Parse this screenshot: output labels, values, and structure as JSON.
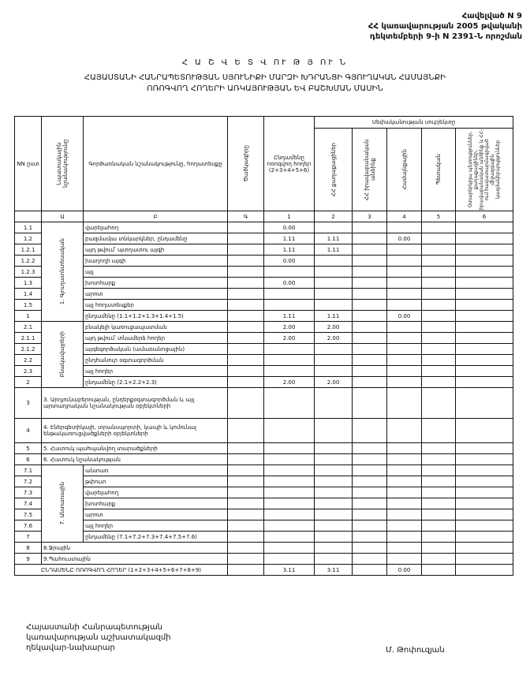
{
  "annex": {
    "line1": "Հավելված N 9",
    "line2": "ՀՀ կառավարության 2005 թվականի",
    "line3": "դեկտեմբերի 9-ի N 2391-Ն որոշման"
  },
  "title": "Հ Ա Շ Վ Ե Տ Վ ՈՒ Թ Յ ՈՒ Ն",
  "subtitle1": "ՀԱՅԱՍՏԱՆԻ ՀԱՆՐԱՊԵՏՈՒԹՅԱՆ ՍՅՈՒՆԻՔԻ ՄԱՐԶԻ ԽԴՐԱՆՑԻ ԳՅՈՒՂԱԿԱՆ ՀԱՄԱՅՆՔԻ",
  "subtitle2": "ՈՌՈԳՎՈՂ ՀՈՂԵՐԻ ԱՌԿԱՅՈՒԹՅԱՆ ԵՎ ԲԱՇԽՄԱՆ ՄԱՍԻՆ",
  "table": {
    "headers": {
      "nn": "NN ըստ",
      "purpose": "Նպատակային նշանակությունը",
      "function": "Գործառնական նշանակությունը, հողատեսքը",
      "code": "Ծածկագիրը",
      "total": "Ընդամենը ոռոգվող հողեր (2+3+4+5+6)",
      "ownership": "Սեփականության սուբյեկտը",
      "col2": "ՀՀ քաղաքացիներ",
      "col3": "ՀՀ իրավաբանական անձինք",
      "col4": "Համայնքային",
      "col5": "Պետական",
      "col6": "Օտարերկրյա պետություններ, քաղաքացիներ, իրավաբանական անձինք և ՀՀ-ում հավատարմագրված միջազգային կազմակերպություններ"
    },
    "letters": [
      "Ա",
      "Բ",
      "Գ",
      "1",
      "2",
      "3",
      "4",
      "5",
      "6"
    ],
    "sections": [
      {
        "group": "1. Գյուղատնտեսական",
        "rows": [
          {
            "num": "1.1",
            "label": "վարելահող",
            "values": [
              "",
              "0.00",
              "",
              "",
              "",
              "",
              ""
            ]
          },
          {
            "num": "1.2",
            "label": "բազմամյա տնկարկներ, ընդամենը",
            "values": [
              "",
              "1.11",
              "1.11",
              "",
              "0.00",
              "",
              ""
            ]
          },
          {
            "num": "1.2.1",
            "label": "այդ թվում՝ պտղատու այգի",
            "values": [
              "",
              "1.11",
              "1.11",
              "",
              "",
              "",
              ""
            ]
          },
          {
            "num": "1.2.2",
            "label": "խաղողի այգի",
            "values": [
              "",
              "0.00",
              "",
              "",
              "",
              "",
              ""
            ]
          },
          {
            "num": "1.2.3",
            "label": "այլ",
            "values": [
              "",
              "",
              "",
              "",
              "",
              "",
              ""
            ]
          },
          {
            "num": "1.3",
            "label": "խոտհարք",
            "values": [
              "",
              "0.00",
              "",
              "",
              "",
              "",
              ""
            ]
          },
          {
            "num": "1.4",
            "label": "արոտ",
            "values": [
              "",
              "",
              "",
              "",
              "",
              "",
              ""
            ]
          },
          {
            "num": "1.5",
            "label": "այլ հողատեսքեր",
            "values": [
              "",
              "",
              "",
              "",
              "",
              "",
              ""
            ]
          },
          {
            "num": "1",
            "label": "ընդամենը (1.1+1.2+1.3+1.4+1.5)",
            "values": [
              "",
              "1.11",
              "1.11",
              "",
              "0.00",
              "",
              ""
            ]
          }
        ]
      },
      {
        "group": "Բնակավայրերի",
        "rows": [
          {
            "num": "2.1",
            "label": "բնակելի կառուցապատման",
            "values": [
              "",
              "2.00",
              "2.00",
              "",
              "",
              "",
              ""
            ]
          },
          {
            "num": "2.1.1",
            "label": "այդ թվում՝ տնամերձ հողեր",
            "values": [
              "",
              "2.00",
              "2.00",
              "",
              "",
              "",
              ""
            ]
          },
          {
            "num": "2.1.2",
            "label": "այգեգործական (ամառանոցային)",
            "values": [
              "",
              "",
              "",
              "",
              "",
              "",
              ""
            ]
          },
          {
            "num": "2.2",
            "label": "ընդհանուր օգտագործման",
            "values": [
              "",
              "",
              "",
              "",
              "",
              "",
              ""
            ]
          },
          {
            "num": "2.3",
            "label": "այլ հողեր",
            "values": [
              "",
              "",
              "",
              "",
              "",
              "",
              ""
            ]
          },
          {
            "num": "2",
            "label": "ընդամենը (2.1+2.2+2.3)",
            "values": [
              "",
              "2.00",
              "2.00",
              "",
              "",
              "",
              ""
            ]
          }
        ]
      },
      {
        "rows": [
          {
            "num": "3",
            "label": "3. Արդյունաբերության, ընդերքօգտագործման և այլ արտադրական նշանակության օբյեկտների",
            "tall": true,
            "values": [
              "",
              "",
              "",
              "",
              "",
              "",
              ""
            ]
          }
        ]
      },
      {
        "rows": [
          {
            "num": "4",
            "label": "4. Էներգետիկայի, տրանսպորտի, կապի և կոմունալ ենթակառուցվածքների օբյեկտների",
            "mid": true,
            "values": [
              "",
              "",
              "",
              "",
              "",
              "",
              ""
            ]
          }
        ]
      },
      {
        "rows": [
          {
            "num": "5",
            "label": "5. Հատուկ պահպանվող տարածքների",
            "values": [
              "",
              "",
              "",
              "",
              "",
              "",
              ""
            ]
          }
        ]
      },
      {
        "rows": [
          {
            "num": "6",
            "label": "6. Հատուկ նշանակության",
            "values": [
              "",
              "",
              "",
              "",
              "",
              "",
              ""
            ]
          }
        ]
      },
      {
        "group": "7. Անտառային",
        "rows": [
          {
            "num": "7.1",
            "label": "անտառ",
            "values": [
              "",
              "",
              "",
              "",
              "",
              "",
              ""
            ]
          },
          {
            "num": "7.2",
            "label": "թփուտ",
            "values": [
              "",
              "",
              "",
              "",
              "",
              "",
              ""
            ]
          },
          {
            "num": "7.3",
            "label": "վարելահող",
            "values": [
              "",
              "",
              "",
              "",
              "",
              "",
              ""
            ]
          },
          {
            "num": "7.4",
            "label": "խոտհարք",
            "values": [
              "",
              "",
              "",
              "",
              "",
              "",
              ""
            ]
          },
          {
            "num": "7.5",
            "label": "արոտ",
            "values": [
              "",
              "",
              "",
              "",
              "",
              "",
              ""
            ]
          },
          {
            "num": "7.6",
            "label": "այլ հողեր",
            "values": [
              "",
              "",
              "",
              "",
              "",
              "",
              ""
            ]
          },
          {
            "num": "7",
            "label": "ընդամենը (7.1+7.2+7.3+7.4+7.5+7.6)",
            "values": [
              "",
              "",
              "",
              "",
              "",
              "",
              ""
            ]
          }
        ]
      },
      {
        "rows": [
          {
            "num": "8",
            "label": "8.Ջրային",
            "values": [
              "",
              "",
              "",
              "",
              "",
              "",
              ""
            ]
          }
        ]
      },
      {
        "rows": [
          {
            "num": "9",
            "label": "9.Պահուստային",
            "values": [
              "",
              "",
              "",
              "",
              "",
              "",
              ""
            ]
          }
        ]
      }
    ],
    "total": {
      "label": "ԸՆԴԱՄԵՆԸ ՈՌՈԳՎՈՂ ՀՈՂԵՐ (1+2+3+4+5+6+7+8+9)",
      "values": [
        "",
        "3.11",
        "3.11",
        "",
        "0.00",
        "",
        ""
      ]
    }
  },
  "footer": {
    "line1": "Հայաստանի Հանրապետության",
    "line2": "կառավարության աշխատակազմի",
    "line3": "ղեկավար-նախարար",
    "signatory": "Մ. Թոփուզյան"
  }
}
